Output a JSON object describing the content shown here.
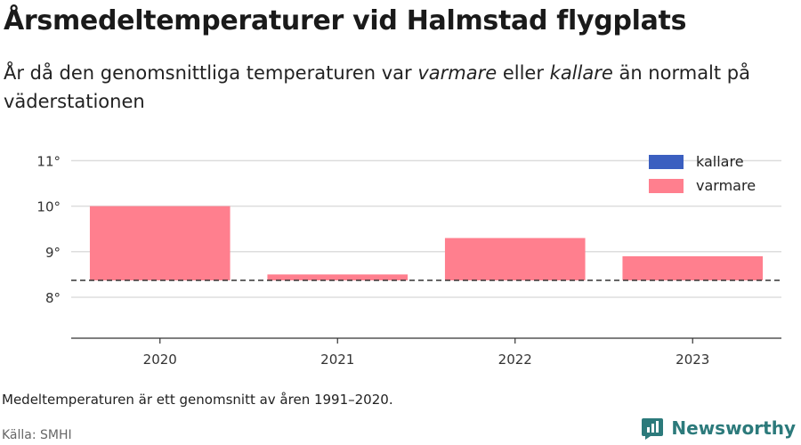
{
  "header": {
    "title": "Årsmedeltemperaturer vid Halmstad flygplats",
    "subtitle_pre": "År då den genomsnittliga temperaturen var ",
    "subtitle_warm": "varmare",
    "subtitle_mid": " eller ",
    "subtitle_cold": "kallare",
    "subtitle_post": " än normalt på väderstationen"
  },
  "chart_data": {
    "type": "bar",
    "categories": [
      "2020",
      "2021",
      "2022",
      "2023"
    ],
    "values": [
      10.0,
      8.5,
      9.3,
      8.9
    ],
    "baseline": 8.37,
    "ylim": [
      7.1,
      11.4
    ],
    "yticks": [
      8,
      9,
      10,
      11
    ],
    "ytick_labels": [
      "8°",
      "9°",
      "10°",
      "11°"
    ],
    "legend": [
      {
        "name": "kallare",
        "color": "#3b5fc0"
      },
      {
        "name": "varmare",
        "color": "#ff7f8e"
      }
    ],
    "legend_position": "top-right",
    "grid": true
  },
  "footer": {
    "note": "Medeltemperaturen är ett genomsnitt av åren 1991–2020.",
    "source": "Källa: SMHI",
    "brand": "Newsworthy"
  },
  "colors": {
    "warm": "#ff7f8e",
    "cold": "#3b5fc0",
    "brand": "#2c7a7b"
  }
}
